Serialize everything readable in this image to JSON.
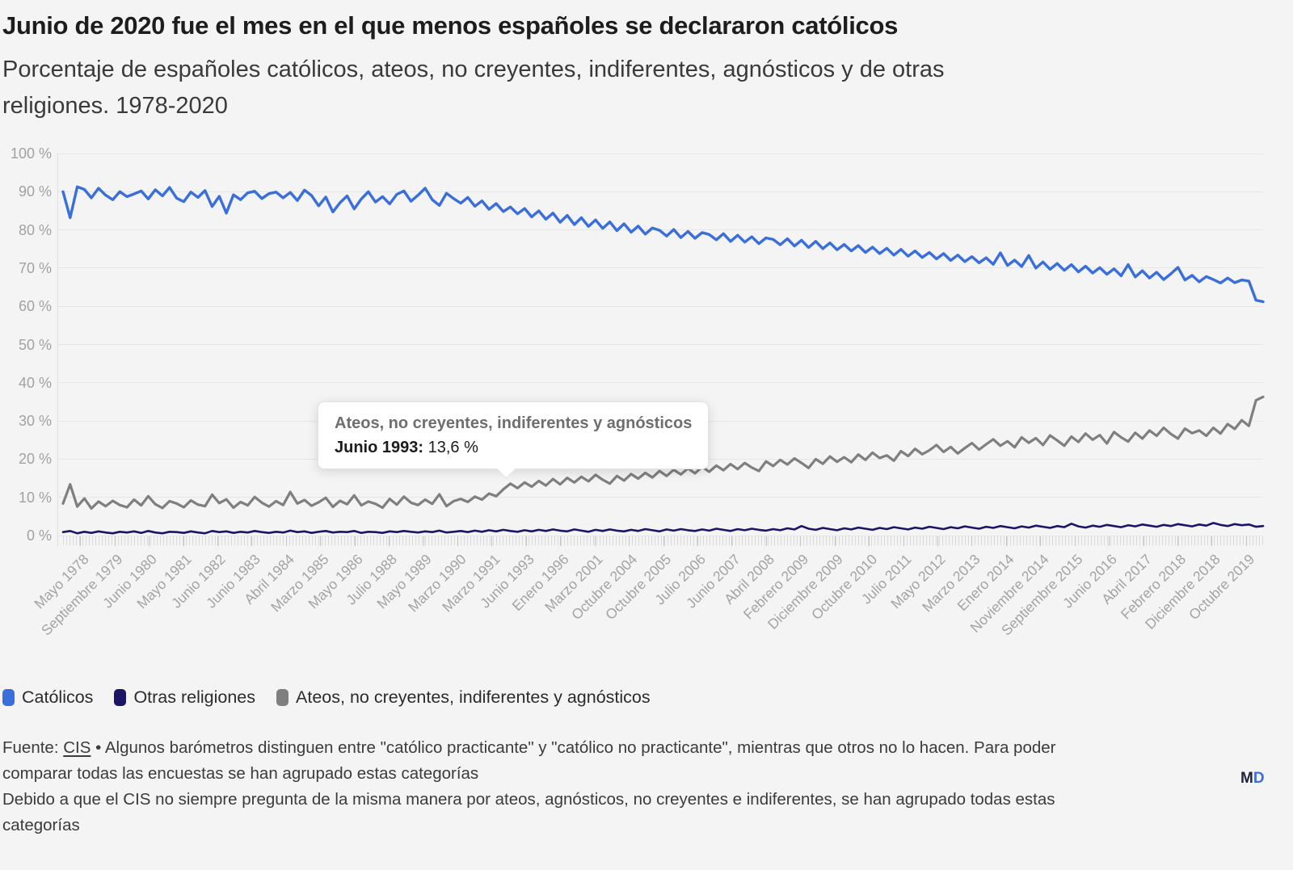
{
  "header": {
    "title": "Junio de 2020 fue el mes en el que menos españoles se declararon católicos",
    "subtitle_lines": [
      "Porcentaje de españoles católicos, ateos, no creyentes, indiferentes, agnósticos y de otras",
      "religiones. 1978-2020"
    ]
  },
  "tooltip": {
    "series": "Ateos, no creyentes, indiferentes y agnósticos",
    "label": "Junio 1993:",
    "value": "13,6 %"
  },
  "legend": [
    {
      "label": "Católicos",
      "color": "#3a6edb"
    },
    {
      "label": "Otras religiones",
      "color": "#1a1566"
    },
    {
      "label": "Ateos, no creyentes, indiferentes y agnósticos",
      "color": "#7f7f7f"
    }
  ],
  "footnote": {
    "source_label": "Fuente: ",
    "source_link": "CIS",
    "line1_rest": " • Algunos barómetros distinguen entre \"católico practicante\" y \"católico no practicante\", mientras que otros no lo hacen. Para poder",
    "line2": "comparar todas las encuestas se han agrupado estas categorías",
    "line3": "Debido a que el CIS no siempre pregunta de la misma manera por ateos, agnósticos, no creyentes e indiferentes, se han agrupado todas estas",
    "line4": "categorías"
  },
  "branding": {
    "m": "M",
    "d": "D"
  },
  "chart_data": {
    "type": "line",
    "title": "Junio de 2020 fue el mes en el que menos españoles se declararon católicos",
    "subtitle": "Porcentaje de españoles católicos, ateos, no creyentes, indiferentes, agnósticos y de otras religiones. 1978-2020",
    "ylim": [
      0,
      100
    ],
    "y_tick_labels": [
      "100 %",
      "90 %",
      "80 %",
      "70 %",
      "60 %",
      "50 %",
      "40 %",
      "30 %",
      "20 %",
      "10 %",
      "0 %"
    ],
    "x_axis_labels": [
      "Mayo 1978",
      "Septiembre 1979",
      "Junio 1980",
      "Mayo 1981",
      "Junio 1982",
      "Junio 1983",
      "Abril 1984",
      "Marzo 1985",
      "Mayo 1986",
      "Julio 1988",
      "Mayo 1989",
      "Marzo 1990",
      "Marzo 1991",
      "Junio 1993",
      "Enero 1996",
      "Marzo 2001",
      "Octubre 2004",
      "Octubre 2005",
      "Julio 2006",
      "Junio 2007",
      "Abril 2008",
      "Febrero 2009",
      "Diciembre 2009",
      "Octubre 2010",
      "Julio 2011",
      "Mayo 2012",
      "Marzo 2013",
      "Enero 2014",
      "Noviembre 2014",
      "Septiembre 2015",
      "Junio 2016",
      "Abril 2017",
      "Febrero 2018",
      "Diciembre 2018",
      "Octubre 2019"
    ],
    "grid": true,
    "legend_position": "bottom",
    "highlight": {
      "series": "Ateos, no creyentes, indiferentes y agnósticos",
      "x_label": "Junio 1993",
      "value_pct": 13.6,
      "index": 63
    },
    "series": [
      {
        "name": "Católicos",
        "color": "#3a6edb",
        "values": [
          90.0,
          83.2,
          91.3,
          90.6,
          88.4,
          90.9,
          89.1,
          87.9,
          90.0,
          88.7,
          89.4,
          90.2,
          88.1,
          90.5,
          88.9,
          91.1,
          88.3,
          87.4,
          89.9,
          88.5,
          90.3,
          86.1,
          88.8,
          84.4,
          89.2,
          87.9,
          89.7,
          90.1,
          88.2,
          89.5,
          89.9,
          88.4,
          89.8,
          87.7,
          90.4,
          89.0,
          86.3,
          88.6,
          84.7,
          87.1,
          88.9,
          85.5,
          88.1,
          90.0,
          87.3,
          88.7,
          86.8,
          89.3,
          90.2,
          87.5,
          89.1,
          90.9,
          87.9,
          86.4,
          89.6,
          88.2,
          87.0,
          88.5,
          86.2,
          87.6,
          85.4,
          86.9,
          84.8,
          86.0,
          84.2,
          85.6,
          83.4,
          85.0,
          82.8,
          84.4,
          82.0,
          83.8,
          81.4,
          83.2,
          80.9,
          82.6,
          80.4,
          82.1,
          79.8,
          81.6,
          79.4,
          81.0,
          78.9,
          80.5,
          79.9,
          78.4,
          80.1,
          78.0,
          79.6,
          77.8,
          79.3,
          78.8,
          77.4,
          79.0,
          77.0,
          78.6,
          76.8,
          78.2,
          76.4,
          77.9,
          77.5,
          76.1,
          77.7,
          75.8,
          77.3,
          75.4,
          77.0,
          75.1,
          76.6,
          74.8,
          76.2,
          74.5,
          75.9,
          74.1,
          75.5,
          73.8,
          75.2,
          73.4,
          74.9,
          73.1,
          74.5,
          72.8,
          74.1,
          72.4,
          73.8,
          72.0,
          73.4,
          71.7,
          73.0,
          71.4,
          72.7,
          71.0,
          74.0,
          70.7,
          72.1,
          70.4,
          73.3,
          70.0,
          71.6,
          69.7,
          71.2,
          69.4,
          70.9,
          69.0,
          70.5,
          68.7,
          70.1,
          68.4,
          69.8,
          68.0,
          70.9,
          67.7,
          69.3,
          67.4,
          68.9,
          67.0,
          68.5,
          70.2,
          66.9,
          68.1,
          66.4,
          67.8,
          67.0,
          66.1,
          67.4,
          66.2,
          66.9,
          66.6,
          61.6,
          61.2
        ]
      },
      {
        "name": "Otras religiones",
        "color": "#1a1566",
        "values": [
          0.9,
          1.2,
          0.6,
          1.0,
          0.7,
          1.1,
          0.8,
          0.6,
          1.0,
          0.8,
          1.1,
          0.7,
          1.2,
          0.8,
          0.6,
          1.0,
          0.9,
          0.7,
          1.1,
          0.8,
          0.6,
          1.2,
          0.9,
          1.1,
          0.7,
          1.0,
          0.8,
          1.2,
          0.9,
          0.7,
          1.0,
          0.8,
          1.3,
          0.9,
          1.1,
          0.7,
          1.0,
          1.2,
          0.8,
          1.0,
          0.9,
          1.2,
          0.7,
          1.0,
          0.9,
          0.7,
          1.1,
          0.9,
          1.2,
          1.0,
          0.8,
          1.1,
          0.9,
          1.3,
          0.8,
          1.0,
          1.2,
          0.9,
          1.3,
          1.0,
          1.4,
          1.1,
          1.5,
          1.2,
          1.0,
          1.4,
          1.1,
          1.5,
          1.2,
          1.6,
          1.3,
          1.1,
          1.6,
          1.3,
          1.0,
          1.5,
          1.2,
          1.6,
          1.3,
          1.1,
          1.5,
          1.2,
          1.7,
          1.4,
          1.1,
          1.6,
          1.3,
          1.7,
          1.4,
          1.2,
          1.6,
          1.3,
          1.8,
          1.5,
          1.2,
          1.7,
          1.4,
          1.8,
          1.5,
          1.3,
          1.7,
          1.4,
          1.9,
          1.6,
          2.5,
          1.8,
          1.5,
          2.0,
          1.7,
          1.4,
          1.9,
          1.6,
          2.1,
          1.8,
          1.5,
          2.0,
          1.7,
          2.2,
          1.9,
          1.6,
          2.1,
          1.8,
          2.3,
          2.0,
          1.7,
          2.2,
          1.9,
          2.4,
          2.1,
          1.8,
          2.3,
          2.0,
          2.5,
          2.2,
          1.9,
          2.4,
          2.1,
          2.6,
          2.3,
          2.0,
          2.5,
          2.2,
          3.1,
          2.4,
          2.1,
          2.6,
          2.3,
          2.8,
          2.5,
          2.2,
          2.7,
          2.4,
          2.9,
          2.6,
          2.3,
          2.8,
          2.5,
          3.0,
          2.7,
          2.4,
          2.9,
          2.6,
          3.3,
          2.8,
          2.5,
          3.0,
          2.7,
          2.9,
          2.3,
          2.5
        ]
      },
      {
        "name": "Ateos, no creyentes, indiferentes y agnósticos",
        "color": "#7f7f7f",
        "values": [
          8.4,
          13.4,
          7.6,
          9.7,
          7.1,
          8.9,
          7.7,
          9.1,
          8.0,
          7.4,
          9.4,
          7.9,
          10.3,
          8.2,
          7.2,
          9.0,
          8.4,
          7.4,
          9.2,
          8.1,
          7.7,
          10.7,
          8.5,
          9.5,
          7.3,
          8.8,
          7.9,
          10.1,
          8.6,
          7.6,
          9.0,
          8.0,
          11.4,
          8.4,
          9.3,
          7.8,
          8.7,
          9.9,
          7.5,
          9.1,
          8.2,
          10.5,
          7.9,
          8.9,
          8.3,
          7.3,
          9.6,
          8.1,
          10.2,
          8.6,
          8.0,
          9.4,
          8.3,
          10.8,
          7.7,
          9.0,
          9.6,
          8.8,
          10.2,
          9.4,
          11.0,
          10.3,
          12.1,
          13.6,
          12.4,
          13.9,
          12.8,
          14.3,
          13.1,
          14.8,
          13.4,
          15.1,
          13.9,
          15.4,
          14.2,
          15.9,
          14.6,
          13.6,
          15.6,
          14.4,
          16.1,
          14.9,
          16.4,
          15.2,
          16.9,
          15.6,
          17.2,
          16.0,
          17.6,
          16.3,
          18.0,
          16.7,
          18.3,
          17.1,
          18.7,
          17.4,
          19.0,
          17.8,
          16.9,
          19.4,
          18.2,
          19.8,
          18.6,
          20.2,
          19.0,
          17.7,
          20.0,
          18.8,
          20.7,
          19.3,
          20.5,
          19.2,
          21.2,
          19.8,
          21.7,
          20.3,
          21.0,
          19.6,
          22.1,
          20.8,
          22.7,
          21.3,
          22.3,
          23.7,
          21.9,
          23.2,
          21.5,
          22.9,
          24.2,
          22.5,
          23.9,
          25.2,
          23.5,
          24.7,
          23.1,
          25.7,
          24.3,
          25.5,
          23.7,
          26.2,
          24.9,
          23.5,
          25.9,
          24.5,
          26.7,
          25.1,
          26.3,
          24.1,
          27.1,
          25.7,
          24.6,
          26.9,
          25.4,
          27.5,
          26.1,
          28.2,
          26.6,
          25.4,
          28.0,
          26.8,
          27.5,
          26.1,
          28.2,
          26.7,
          29.2,
          27.9,
          30.2,
          28.7,
          35.4,
          36.3
        ]
      }
    ]
  }
}
